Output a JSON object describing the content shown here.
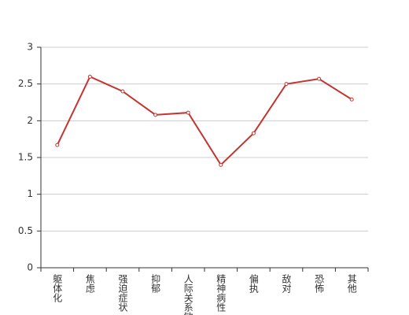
{
  "chart_data": {
    "type": "line",
    "categories": [
      "躯体化",
      "焦虑",
      "强迫症状",
      "抑郁",
      "人际关系敏感",
      "精神病性",
      "偏执",
      "敌对",
      "恐怖",
      "其他"
    ],
    "values": [
      1.67,
      2.6,
      2.4,
      2.08,
      2.11,
      1.4,
      1.83,
      2.5,
      2.57,
      2.29
    ],
    "color": "#c23531",
    "ylim": [
      0,
      3
    ],
    "yticks": [
      0,
      0.5,
      1,
      1.5,
      2,
      2.5,
      3
    ],
    "grid": true
  }
}
